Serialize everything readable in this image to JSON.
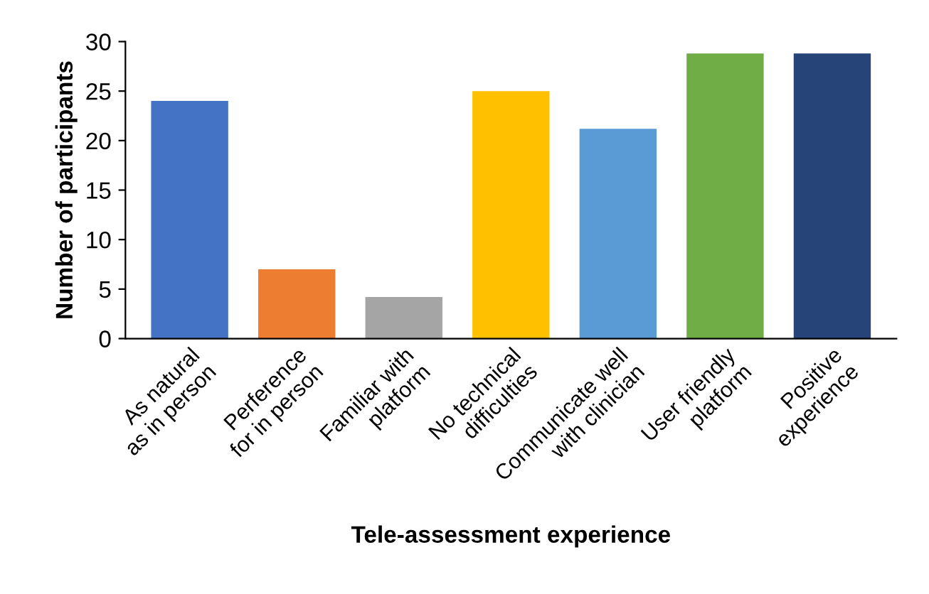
{
  "chart_data": {
    "type": "bar",
    "categories": [
      "As natural\nas in person",
      "Perference\nfor in person",
      "Familiar with\nplatform",
      "No technical\ndifficulties",
      "Communicate well\nwith clinician",
      "User friendly\nplatform",
      "Positive\nexperience"
    ],
    "values": [
      24,
      7,
      4.2,
      25,
      21.2,
      28.8,
      28.8
    ],
    "colors": [
      "#4472c4",
      "#ed7d31",
      "#a5a5a5",
      "#ffc000",
      "#5b9bd5",
      "#70ad47",
      "#264478"
    ],
    "xlabel": "Tele-assessment experience",
    "ylabel": "Number of participants",
    "ylim": [
      0,
      30
    ],
    "yticks": [
      0,
      5,
      10,
      15,
      20,
      25,
      30
    ],
    "grid": false,
    "legend": false
  }
}
